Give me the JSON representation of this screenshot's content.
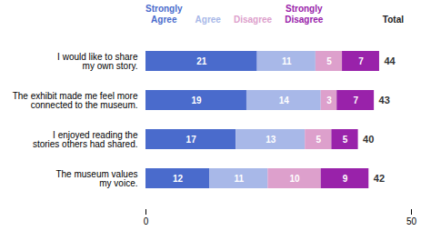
{
  "chart_data": {
    "type": "bar",
    "orientation": "horizontal",
    "stacked": true,
    "data_labels": true,
    "categories": [
      "I would like to share\nmy own story.",
      "The exhibit made me feel more\nconnected to the museum.",
      "I enjoyed reading the\nstories others had shared.",
      "The museum values\nmy voice."
    ],
    "series": [
      {
        "name": "Strongly\nAgree",
        "color": "#4a6bcc",
        "values": [
          21,
          19,
          17,
          12
        ]
      },
      {
        "name": "Agree",
        "color": "#a8b8e8",
        "values": [
          11,
          14,
          13,
          11
        ]
      },
      {
        "name": "Disagree",
        "color": "#dda0cc",
        "values": [
          5,
          3,
          5,
          10
        ]
      },
      {
        "name": "Strongly\nDisagree",
        "color": "#9922aa",
        "values": [
          7,
          7,
          5,
          9
        ]
      }
    ],
    "totals": [
      44,
      43,
      40,
      42
    ],
    "totals_label": "Total",
    "xlim": [
      0,
      50
    ],
    "xticks": [
      0,
      50
    ],
    "grid": false,
    "legend": "top"
  }
}
